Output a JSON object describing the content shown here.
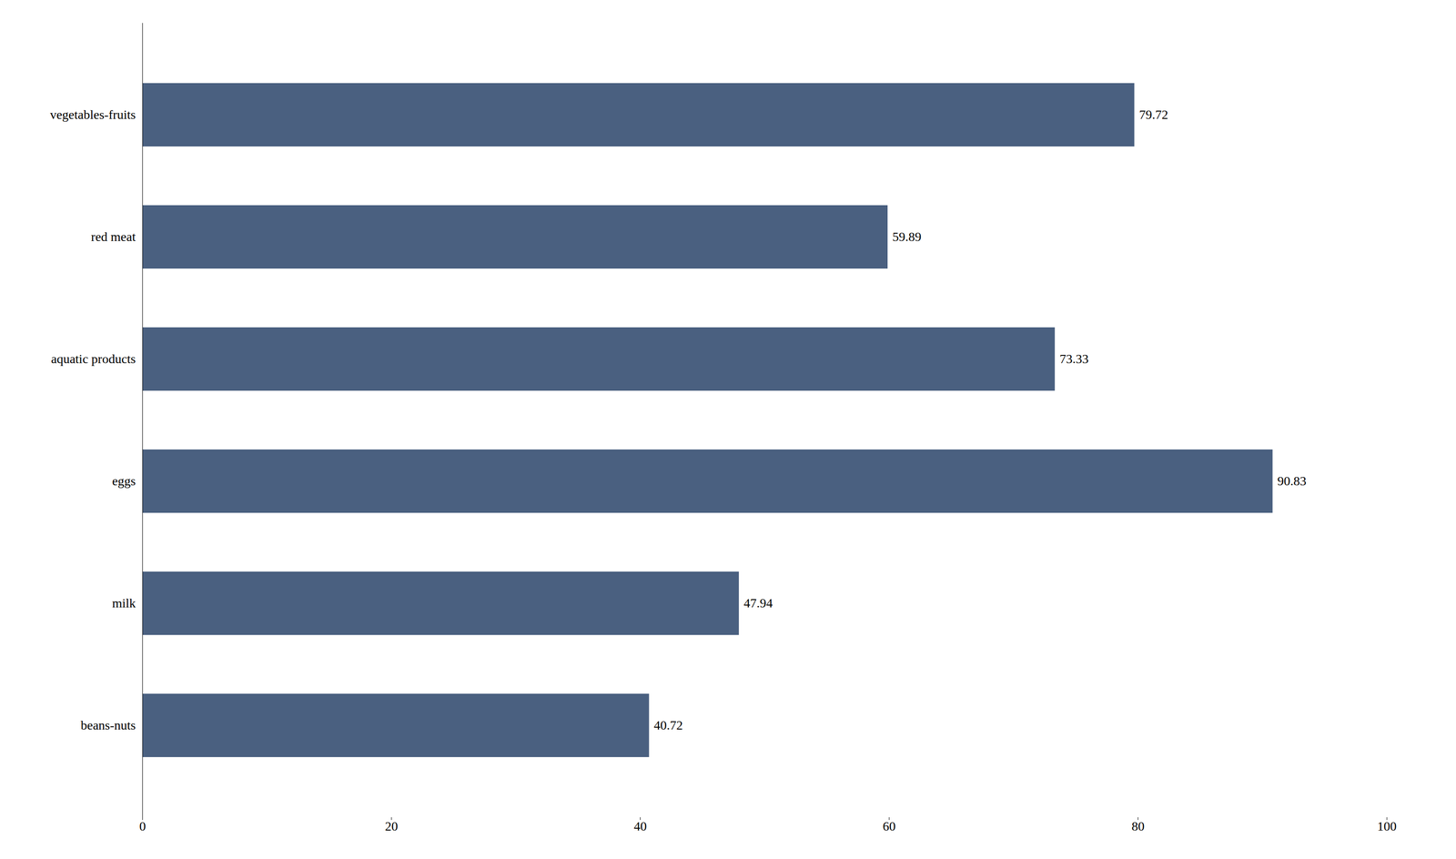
{
  "chart_data": {
    "type": "bar",
    "orientation": "horizontal",
    "categories": [
      "beans-nuts",
      "milk",
      "eggs",
      "aquatic products",
      "red meat",
      "vegetables-fruits"
    ],
    "values": [
      40.72,
      47.94,
      90.83,
      73.33,
      59.89,
      79.72
    ],
    "color": "#4a6080",
    "xlim": [
      0,
      100
    ],
    "xticks": [
      0,
      20,
      40,
      60,
      80,
      100
    ],
    "data_labels": true,
    "grid": false
  }
}
